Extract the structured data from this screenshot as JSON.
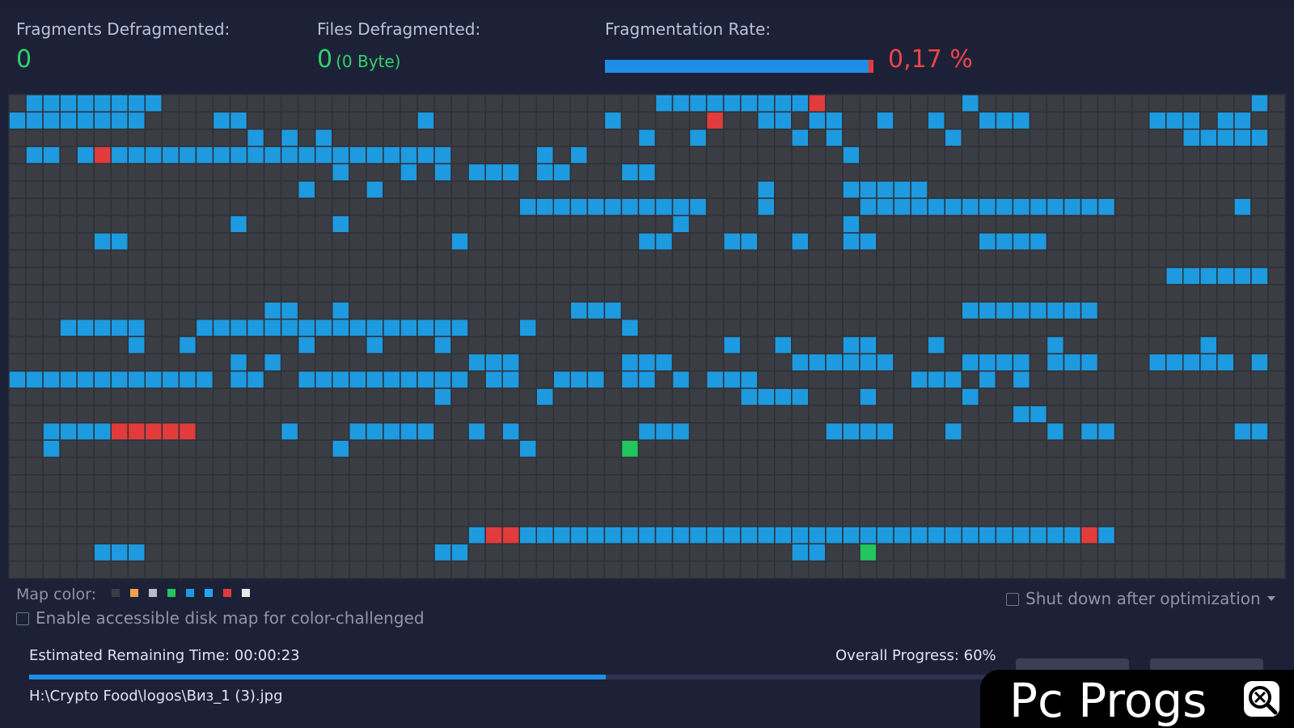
{
  "stats": {
    "fragments_label": "Fragments Defragmented:",
    "fragments_value": "0",
    "files_label": "Files Defragmented:",
    "files_value": "0",
    "files_size": "(0 Byte)",
    "rate_label": "Fragmentation Rate:",
    "rate_value": "0,17 %"
  },
  "colors": {
    "empty": "#3a3d44",
    "used": "#1e9ae0",
    "fragmented": "#e23b3b",
    "processing": "#22c55e",
    "accent": "#1e8ee6"
  },
  "disk_map": {
    "columns": 75,
    "rows": 28,
    "used_ranges": [
      [
        0,
        1,
        8
      ],
      [
        0,
        38,
        46
      ],
      [
        0,
        56,
        56
      ],
      [
        0,
        73,
        73
      ],
      [
        1,
        0,
        7
      ],
      [
        1,
        12,
        13
      ],
      [
        1,
        24,
        24
      ],
      [
        1,
        35,
        35
      ],
      [
        1,
        44,
        45
      ],
      [
        1,
        47,
        48
      ],
      [
        1,
        51,
        51
      ],
      [
        1,
        54,
        54
      ],
      [
        1,
        57,
        59
      ],
      [
        1,
        67,
        69
      ],
      [
        1,
        71,
        72
      ],
      [
        2,
        14,
        14
      ],
      [
        2,
        16,
        16
      ],
      [
        2,
        18,
        18
      ],
      [
        2,
        37,
        37
      ],
      [
        2,
        40,
        40
      ],
      [
        2,
        46,
        46
      ],
      [
        2,
        48,
        48
      ],
      [
        2,
        55,
        55
      ],
      [
        2,
        69,
        73
      ],
      [
        3,
        1,
        2
      ],
      [
        3,
        4,
        25
      ],
      [
        3,
        31,
        31
      ],
      [
        3,
        33,
        33
      ],
      [
        3,
        49,
        49
      ],
      [
        4,
        19,
        19
      ],
      [
        4,
        23,
        23
      ],
      [
        4,
        25,
        25
      ],
      [
        4,
        27,
        29
      ],
      [
        4,
        31,
        32
      ],
      [
        4,
        36,
        37
      ],
      [
        5,
        17,
        17
      ],
      [
        5,
        21,
        21
      ],
      [
        5,
        44,
        44
      ],
      [
        5,
        49,
        53
      ],
      [
        6,
        30,
        40
      ],
      [
        6,
        44,
        44
      ],
      [
        6,
        50,
        64
      ],
      [
        6,
        72,
        72
      ],
      [
        7,
        13,
        13
      ],
      [
        7,
        19,
        19
      ],
      [
        7,
        39,
        39
      ],
      [
        7,
        49,
        49
      ],
      [
        8,
        5,
        6
      ],
      [
        8,
        26,
        26
      ],
      [
        8,
        37,
        38
      ],
      [
        8,
        42,
        43
      ],
      [
        8,
        46,
        46
      ],
      [
        8,
        49,
        50
      ],
      [
        8,
        57,
        60
      ],
      [
        10,
        68,
        73
      ],
      [
        12,
        15,
        16
      ],
      [
        12,
        19,
        19
      ],
      [
        12,
        33,
        35
      ],
      [
        12,
        56,
        63
      ],
      [
        13,
        3,
        7
      ],
      [
        13,
        11,
        26
      ],
      [
        13,
        30,
        30
      ],
      [
        13,
        36,
        36
      ],
      [
        14,
        7,
        7
      ],
      [
        14,
        10,
        10
      ],
      [
        14,
        17,
        17
      ],
      [
        14,
        21,
        21
      ],
      [
        14,
        25,
        25
      ],
      [
        14,
        42,
        42
      ],
      [
        14,
        45,
        45
      ],
      [
        14,
        49,
        50
      ],
      [
        14,
        54,
        54
      ],
      [
        14,
        61,
        61
      ],
      [
        14,
        70,
        70
      ],
      [
        15,
        13,
        13
      ],
      [
        15,
        15,
        15
      ],
      [
        15,
        27,
        29
      ],
      [
        15,
        36,
        38
      ],
      [
        15,
        46,
        51
      ],
      [
        15,
        56,
        59
      ],
      [
        15,
        61,
        63
      ],
      [
        15,
        67,
        71
      ],
      [
        15,
        73,
        73
      ],
      [
        16,
        0,
        11
      ],
      [
        16,
        13,
        14
      ],
      [
        16,
        17,
        26
      ],
      [
        16,
        28,
        29
      ],
      [
        16,
        32,
        34
      ],
      [
        16,
        36,
        37
      ],
      [
        16,
        39,
        39
      ],
      [
        16,
        41,
        43
      ],
      [
        16,
        53,
        55
      ],
      [
        16,
        57,
        57
      ],
      [
        16,
        59,
        59
      ],
      [
        17,
        25,
        25
      ],
      [
        17,
        31,
        31
      ],
      [
        17,
        43,
        46
      ],
      [
        17,
        50,
        50
      ],
      [
        17,
        56,
        56
      ],
      [
        18,
        59,
        60
      ],
      [
        19,
        2,
        5
      ],
      [
        19,
        16,
        16
      ],
      [
        19,
        20,
        24
      ],
      [
        19,
        27,
        27
      ],
      [
        19,
        29,
        29
      ],
      [
        19,
        37,
        39
      ],
      [
        19,
        48,
        51
      ],
      [
        19,
        55,
        55
      ],
      [
        19,
        61,
        61
      ],
      [
        19,
        63,
        64
      ],
      [
        19,
        72,
        73
      ],
      [
        20,
        2,
        2
      ],
      [
        20,
        19,
        19
      ],
      [
        20,
        30,
        30
      ],
      [
        25,
        27,
        64
      ],
      [
        26,
        5,
        7
      ],
      [
        26,
        25,
        26
      ],
      [
        26,
        46,
        47
      ]
    ],
    "fragmented_cells": [
      [
        0,
        47
      ],
      [
        1,
        41
      ],
      [
        3,
        5
      ],
      [
        19,
        6
      ],
      [
        19,
        7
      ],
      [
        19,
        8
      ],
      [
        19,
        9
      ],
      [
        19,
        10
      ],
      [
        25,
        28
      ],
      [
        25,
        29
      ],
      [
        25,
        63
      ]
    ],
    "processing_cells": [
      [
        20,
        36
      ],
      [
        26,
        50
      ]
    ]
  },
  "legend": {
    "label": "Map color:",
    "swatches": [
      "#3a3d44",
      "#f0a050",
      "#b8bcc4",
      "#22c55e",
      "#1e9ae0",
      "#1ea8f0",
      "#e23b3b",
      "#e8e8e8"
    ]
  },
  "options": {
    "accessible_map_label": "Enable accessible disk map for color-challenged",
    "shutdown_label": "Shut down after optimization"
  },
  "progress": {
    "remaining_label": "Estimated Remaining Time: 00:00:23",
    "overall_label": "Overall Progress: 60%",
    "overall_percent": 60,
    "current_file": "H:\\Crypto Food\\logos\\Виз_1 (3).jpg"
  },
  "watermark": {
    "text": "Pc Progs"
  }
}
